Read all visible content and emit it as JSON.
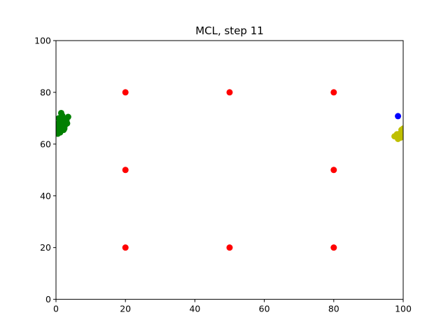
{
  "chart_data": {
    "type": "scatter",
    "title": "MCL, step 11",
    "xlabel": "",
    "ylabel": "",
    "xlim": [
      0,
      100
    ],
    "ylim": [
      0,
      100
    ],
    "xticks": [
      "0",
      "20",
      "40",
      "60",
      "80",
      "100"
    ],
    "yticks": [
      "0",
      "20",
      "40",
      "60",
      "80",
      "100"
    ],
    "grid": false,
    "legend": "none",
    "series": [
      {
        "color": "#ff0000",
        "points": [
          [
            20,
            80
          ],
          [
            50,
            80
          ],
          [
            80,
            80
          ],
          [
            20,
            50
          ],
          [
            80,
            50
          ],
          [
            20,
            20
          ],
          [
            50,
            20
          ],
          [
            80,
            20
          ]
        ]
      },
      {
        "color": "#008000",
        "points": [
          [
            0.5,
            64
          ],
          [
            1,
            66
          ],
          [
            1.5,
            68
          ],
          [
            2,
            70
          ],
          [
            1.5,
            72
          ],
          [
            0.8,
            70
          ],
          [
            2.5,
            67
          ],
          [
            3,
            69
          ],
          [
            3.5,
            70.5
          ],
          [
            1.2,
            64.5
          ],
          [
            2.2,
            65.5
          ],
          [
            0.3,
            66.5
          ],
          [
            1.8,
            71
          ],
          [
            2.8,
            68.5
          ],
          [
            0.6,
            68
          ],
          [
            1.4,
            69
          ],
          [
            2.4,
            66
          ],
          [
            0.9,
            65
          ],
          [
            1.6,
            67
          ],
          [
            3.2,
            68
          ]
        ]
      },
      {
        "color": "#bfbf00",
        "points": [
          [
            97.5,
            63
          ],
          [
            98.5,
            62
          ],
          [
            99,
            64
          ],
          [
            99.5,
            65.5
          ],
          [
            100,
            66
          ],
          [
            98.8,
            63.5
          ],
          [
            99.3,
            62.5
          ],
          [
            99.8,
            64.5
          ],
          [
            98.2,
            63.8
          ]
        ]
      },
      {
        "color": "#0000ff",
        "points": [
          [
            98.5,
            70.8
          ]
        ]
      }
    ]
  }
}
